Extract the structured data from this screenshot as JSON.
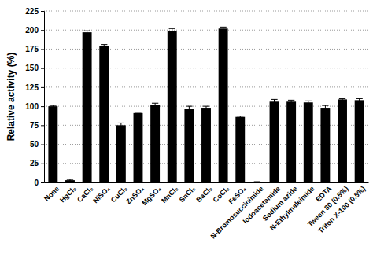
{
  "chart_data": {
    "type": "bar",
    "y_label": "Relative activity (%)",
    "categories": [
      "None",
      "HgCl₂",
      "CaCl₂",
      "NiSO₄",
      "CuCl₂",
      "ZnSO₄",
      "MgSO₄",
      "MnCl₂",
      "SnCl₂",
      "BaCl₂",
      "CoCl₂",
      "FeSO₄",
      "N-Bromosuccinimide",
      "Iodoacetamide",
      "Sodium azide",
      "N-Ethylmaleimide",
      "EDTA",
      "Tween 80 (0.5%)",
      "Triton X-100 (0.5%)"
    ],
    "values": [
      100,
      3,
      197,
      179,
      75,
      91,
      102,
      199,
      97,
      98,
      202,
      86,
      0.5,
      106,
      106,
      105,
      98,
      109,
      108
    ],
    "errors": [
      1,
      1,
      2,
      2,
      3,
      1,
      2,
      3,
      3,
      2,
      2,
      1,
      0.5,
      3,
      2,
      2,
      3,
      1,
      2
    ],
    "color": "#000000",
    "ylim": [
      0,
      225
    ],
    "yticks": [
      0,
      25,
      50,
      75,
      100,
      125,
      150,
      175,
      200,
      225
    ],
    "grid": true
  }
}
